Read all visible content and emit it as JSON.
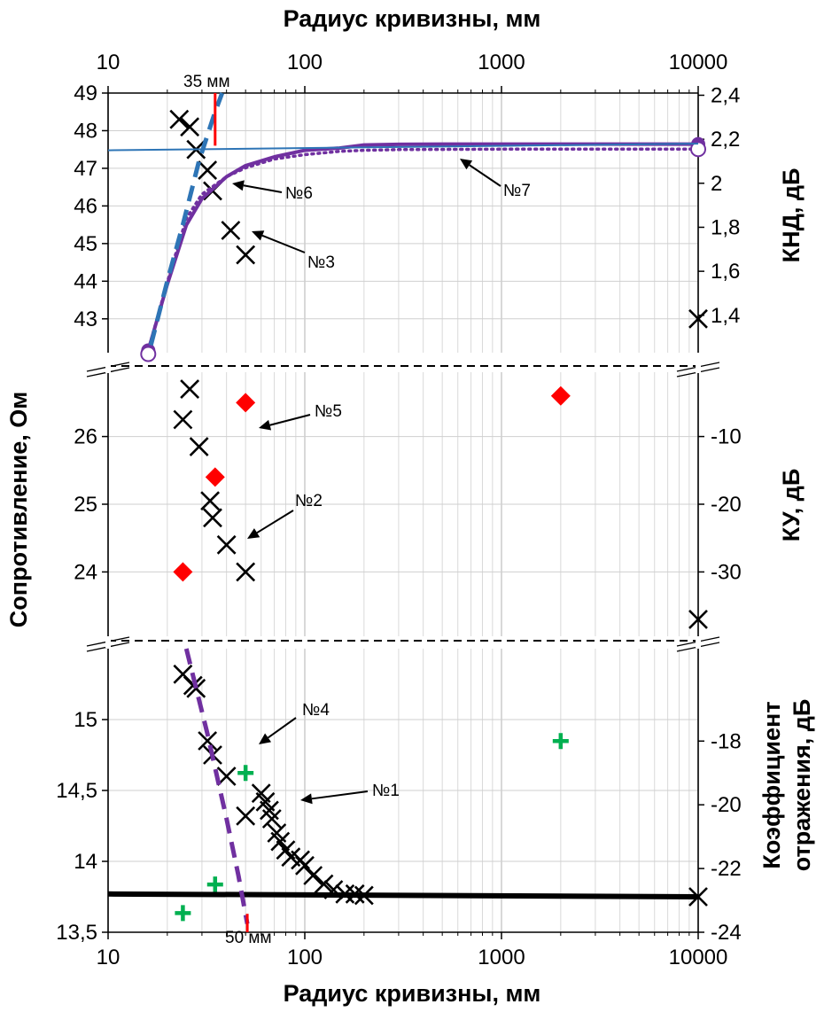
{
  "chart_data": {
    "type": "scatter",
    "x_scale": "log",
    "xlim": [
      10,
      10000
    ],
    "x_ticks": [
      "10",
      "100",
      "1000",
      "10000"
    ],
    "xlabel_top": "Радиус кривизны, мм",
    "xlabel_bottom": "Радиус кривизны, мм",
    "ylabel_left": "Сопротивление, Ом",
    "grid": true,
    "panels": [
      {
        "id": "top",
        "ylim_left": [
          42.1,
          49
        ],
        "left_ticks": [
          "43",
          "44",
          "45",
          "46",
          "47",
          "48",
          "49"
        ],
        "ylim_right": [
          1.23,
          2.41
        ],
        "right_ticks": [
          "1,4",
          "1,6",
          "1,8",
          "2",
          "2,2",
          "2,4"
        ],
        "ylabel_right": "КНД, дБ",
        "series": [
          {
            "marker": "x",
            "color": "#000000",
            "axis": "left",
            "points": [
              [
                23,
                48.3
              ],
              [
                26,
                48.1
              ],
              [
                28,
                47.5
              ],
              [
                32,
                46.95
              ],
              [
                34,
                46.4
              ],
              [
                42,
                45.35
              ],
              [
                50,
                44.7
              ],
              [
                10000,
                43.0
              ]
            ]
          },
          {
            "line": "solid-thick",
            "color": "#7030a0",
            "axis": "right",
            "points": [
              [
                16,
                1.24
              ],
              [
                20,
                1.54
              ],
              [
                25,
                1.81
              ],
              [
                30,
                1.93
              ],
              [
                40,
                2.03
              ],
              [
                50,
                2.08
              ],
              [
                70,
                2.12
              ],
              [
                100,
                2.15
              ],
              [
                150,
                2.16
              ],
              [
                200,
                2.174
              ],
              [
                300,
                2.177
              ],
              [
                500,
                2.178
              ],
              [
                1000,
                2.178
              ],
              [
                10000,
                2.178
              ]
            ],
            "end_marker": "filled-circle"
          },
          {
            "line": "dotted",
            "color": "#7030a0",
            "axis": "right",
            "points": [
              [
                16,
                1.24
              ],
              [
                20,
                1.55
              ],
              [
                25,
                1.84
              ],
              [
                30,
                1.95
              ],
              [
                40,
                2.03
              ],
              [
                50,
                2.07
              ],
              [
                70,
                2.11
              ],
              [
                100,
                2.13
              ],
              [
                150,
                2.145
              ],
              [
                200,
                2.15
              ],
              [
                300,
                2.153
              ],
              [
                1000,
                2.155
              ],
              [
                10000,
                2.155
              ]
            ],
            "end_marker": "hollow-circle"
          },
          {
            "line": "solid-thin",
            "color": "#2e75b6",
            "axis": "right",
            "points": [
              [
                10,
                2.15
              ],
              [
                10000,
                2.18
              ]
            ]
          },
          {
            "line": "dashed-thick",
            "color": "#2e75b6",
            "axis": "left",
            "points": [
              [
                16.5,
                42.3
              ],
              [
                20,
                44.0
              ],
              [
                24,
                45.5
              ],
              [
                29,
                47.2
              ],
              [
                35,
                48.5
              ],
              [
                38,
                49.0
              ]
            ]
          },
          {
            "line": "vertical",
            "color": "#ff0000",
            "axis": "left",
            "points": [
              [
                35,
                47.6
              ],
              [
                35,
                49.0
              ]
            ]
          }
        ],
        "annotations": [
          {
            "text": "35 мм",
            "x": 35
          },
          {
            "text": "№6",
            "x": 40
          },
          {
            "text": "№3",
            "x": 45
          },
          {
            "text": "№7",
            "x": 600
          }
        ]
      },
      {
        "id": "middle",
        "ylim_left": [
          23.05,
          26.95
        ],
        "left_ticks": [
          "24",
          "25",
          "26"
        ],
        "ylim_right": [
          -39.5,
          -0.5
        ],
        "right_ticks": [
          "-10",
          "-20",
          "-30"
        ],
        "ylabel_right": "КУ, дБ",
        "series": [
          {
            "marker": "x",
            "color": "#000000",
            "axis": "left",
            "points": [
              [
                26,
                26.7
              ],
              [
                24,
                26.25
              ],
              [
                29,
                25.85
              ],
              [
                33,
                25.05
              ],
              [
                34,
                24.8
              ],
              [
                40,
                24.4
              ],
              [
                50,
                24.0
              ],
              [
                10000,
                23.3
              ]
            ]
          },
          {
            "marker": "diamond",
            "color": "#ff0000",
            "axis": "right",
            "points": [
              [
                24,
                -30
              ],
              [
                35,
                -16
              ],
              [
                50,
                -5
              ],
              [
                2000,
                -4
              ]
            ]
          }
        ],
        "annotations": [
          {
            "text": "№5",
            "x": 55
          },
          {
            "text": "№2",
            "x": 40
          }
        ]
      },
      {
        "id": "bottom",
        "ylim_left": [
          13.5,
          15.5
        ],
        "left_ticks": [
          "13,5",
          "14",
          "14,5",
          "15"
        ],
        "ylim_right": [
          -24,
          -15.1
        ],
        "right_ticks": [
          "-24",
          "-22",
          "-20",
          "-18"
        ],
        "ylabel_right": "Коэффициент отражения, дБ",
        "series": [
          {
            "marker": "x",
            "color": "#000000",
            "axis": "left",
            "points": [
              [
                24,
                15.32
              ],
              [
                27,
                15.24
              ],
              [
                28,
                15.22
              ],
              [
                32,
                14.85
              ],
              [
                34,
                14.75
              ],
              [
                40,
                14.6
              ],
              [
                50,
                14.32
              ],
              [
                60,
                14.48
              ],
              [
                63,
                14.42
              ],
              [
                66,
                14.36
              ],
              [
                68,
                14.3
              ],
              [
                72,
                14.2
              ],
              [
                75,
                14.14
              ],
              [
                80,
                14.08
              ],
              [
                85,
                14.03
              ],
              [
                95,
                14.01
              ],
              [
                100,
                13.97
              ],
              [
                110,
                13.9
              ],
              [
                125,
                13.84
              ],
              [
                140,
                13.8
              ],
              [
                160,
                13.77
              ],
              [
                180,
                13.77
              ],
              [
                200,
                13.76
              ],
              [
                10000,
                13.75
              ]
            ]
          },
          {
            "marker": "plus",
            "color": "#00b050",
            "axis": "right",
            "points": [
              [
                24,
                -23.4
              ],
              [
                35,
                -22.5
              ],
              [
                50,
                -19.0
              ],
              [
                2000,
                -18.0
              ]
            ]
          },
          {
            "line": "solid-very-thick",
            "color": "#000000",
            "axis": "left",
            "points": [
              [
                10,
                13.77
              ],
              [
                10000,
                13.75
              ]
            ]
          },
          {
            "line": "dashed-thick",
            "color": "#7030a0",
            "axis": "left",
            "points": [
              [
                25,
                15.5
              ],
              [
                32,
                14.9
              ],
              [
                40,
                14.3
              ],
              [
                46,
                13.9
              ],
              [
                51,
                13.56
              ]
            ]
          },
          {
            "line": "vertical",
            "color": "#ff0000",
            "axis": "left",
            "points": [
              [
                51,
                13.5
              ],
              [
                51,
                13.63
              ]
            ]
          }
        ],
        "annotations": [
          {
            "text": "№4",
            "x": 50
          },
          {
            "text": "№1",
            "x": 80
          },
          {
            "text": "50 мм",
            "x": 50
          }
        ]
      }
    ]
  }
}
